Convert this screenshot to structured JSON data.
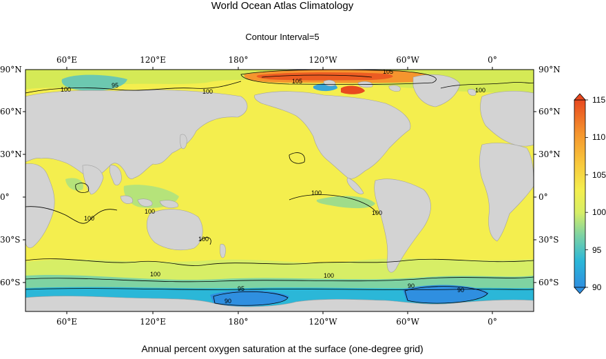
{
  "title": "World Ocean Atlas Climatology",
  "subtitle": "Contour Interval=5",
  "caption": "Annual percent oxygen saturation at the surface (one-degree grid)",
  "colors": {
    "land": "#d3d3d3",
    "ocean_base": "#f4ee4e",
    "high": "#f7a73a",
    "very_high": "#e8491f",
    "low": "#7fd3a2",
    "very_low": "#2f8fe0",
    "contour": "#000000"
  },
  "axes": {
    "top_lon_labels": [
      "60°E",
      "120°E",
      "180°",
      "120°W",
      "60°W",
      "0°"
    ],
    "bottom_lon_labels": [
      "60°E",
      "120°E",
      "180°",
      "120°W",
      "60°W",
      "0°"
    ],
    "left_lat_labels": [
      "90°N",
      "60°N",
      "30°N",
      "0°",
      "30°S",
      "60°S"
    ],
    "right_lat_labels": [
      "90°N",
      "60°N",
      "30°N",
      "0°",
      "30°S",
      "60°S"
    ]
  },
  "colorbar": {
    "min": 90,
    "max": 115,
    "ticks": [
      "115",
      "110",
      "105",
      "100",
      "95",
      "90"
    ],
    "tick_values": [
      115,
      110,
      105,
      100,
      95,
      90
    ],
    "stops": [
      "#2f8fe0",
      "#2bb7d8",
      "#7fd3a2",
      "#d7ee66",
      "#f4ee4e",
      "#f8c83c",
      "#f5952e",
      "#e8491f"
    ]
  },
  "contour_labels": [
    "105",
    "105",
    "100",
    "95",
    "100",
    "100",
    "100",
    "100",
    "100",
    "100",
    "100",
    "95",
    "90",
    "90",
    "90",
    "100",
    "100"
  ]
}
